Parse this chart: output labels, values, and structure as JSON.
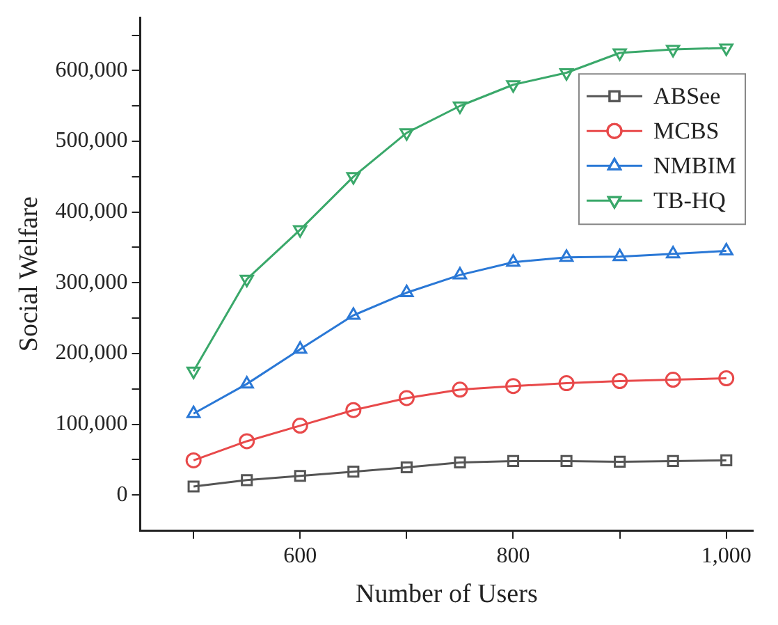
{
  "chart_data": {
    "type": "line",
    "xlabel": "Number of Users",
    "ylabel": "Social Welfare",
    "x": [
      500,
      550,
      600,
      650,
      700,
      750,
      800,
      850,
      900,
      950,
      1000
    ],
    "series": [
      {
        "name": "ABSee",
        "color": "#555555",
        "marker": "square",
        "values": [
          12000,
          21000,
          27000,
          33000,
          39000,
          46000,
          48000,
          48000,
          47000,
          48000,
          49000
        ]
      },
      {
        "name": "MCBS",
        "color": "#e8494a",
        "marker": "circle",
        "values": [
          49000,
          76000,
          98000,
          120000,
          137000,
          149000,
          154000,
          158000,
          161000,
          163000,
          165000
        ]
      },
      {
        "name": "NMBIM",
        "color": "#2a78d6",
        "marker": "triangle",
        "values": [
          115000,
          157000,
          206000,
          254000,
          286000,
          311000,
          329000,
          336000,
          337000,
          341000,
          345000
        ]
      },
      {
        "name": "TB-HQ",
        "color": "#3aa86a",
        "marker": "triangle-down",
        "values": [
          175000,
          305000,
          375000,
          450000,
          512000,
          550000,
          580000,
          597000,
          625000,
          630000,
          632000
        ]
      }
    ],
    "xlim": [
      450,
      1025
    ],
    "ylim": [
      -50000,
      675000
    ],
    "xticks": [
      {
        "value": 500,
        "label": null
      },
      600,
      {
        "value": 700,
        "label": null
      },
      800,
      {
        "value": 900,
        "label": null
      },
      {
        "value": 1000,
        "label": "1,000"
      }
    ],
    "yticks": [
      {
        "value": 0,
        "label": "0"
      },
      {
        "value": 50000,
        "label": null
      },
      {
        "value": 100000,
        "label": "100,000"
      },
      {
        "value": 150000,
        "label": null
      },
      {
        "value": 200000,
        "label": "200,000"
      },
      {
        "value": 250000,
        "label": null
      },
      {
        "value": 300000,
        "label": "300,000"
      },
      {
        "value": 350000,
        "label": null
      },
      {
        "value": 400000,
        "label": "400,000"
      },
      {
        "value": 450000,
        "label": null
      },
      {
        "value": 500000,
        "label": "500,000"
      },
      {
        "value": 550000,
        "label": null
      },
      {
        "value": 600000,
        "label": "600,000"
      },
      {
        "value": 650000,
        "label": null
      }
    ],
    "grid": false,
    "legend": "top right",
    "line_style": "solid"
  }
}
